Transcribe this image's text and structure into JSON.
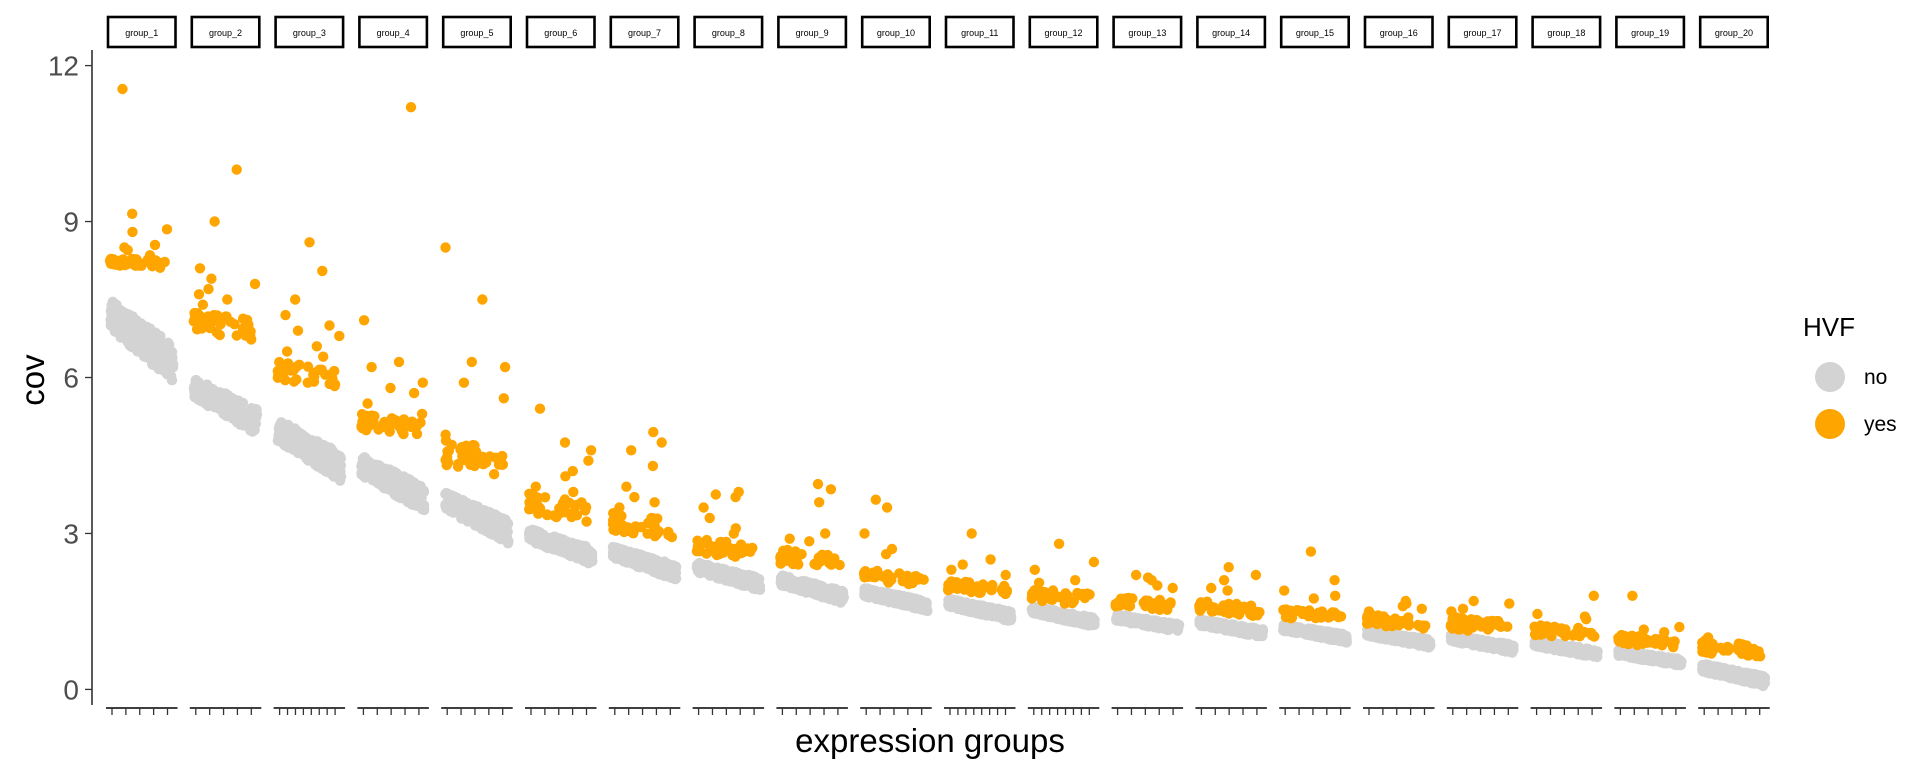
{
  "chart_data": {
    "type": "scatter",
    "facet_layout": "20 panels in one row, faceted by group",
    "xlabel": "expression groups",
    "ylabel": "cov",
    "ylim": [
      -0.3,
      12.3
    ],
    "y_ticks": [
      0,
      3,
      6,
      9,
      12
    ],
    "y_tick_labels": [
      "0",
      "3",
      "6",
      "9",
      "12"
    ],
    "x_tick_labels_shown": false,
    "grid": false,
    "legend": {
      "title": "HVF",
      "placement": "right",
      "entries": [
        {
          "label": "no",
          "color": "#d3d3d3"
        },
        {
          "label": "yes",
          "color": "#ffa500"
        }
      ]
    },
    "panels": [
      {
        "name": "group_1",
        "ticks": 5,
        "grey": [
          7.5,
          5.9
        ],
        "orange_band": [
          8.1,
          8.3
        ],
        "outliers": [
          11.55,
          9.15,
          8.85,
          8.8,
          8.55,
          8.5,
          8.45,
          8.35
        ]
      },
      {
        "name": "group_2",
        "ticks": 5,
        "grey": [
          6.0,
          4.9
        ],
        "orange_band": [
          6.7,
          7.3
        ],
        "outliers": [
          10.0,
          9.0,
          8.1,
          7.9,
          7.8,
          7.7,
          7.6,
          7.5,
          7.4,
          7.2
        ]
      },
      {
        "name": "group_3",
        "ticks": 8,
        "grey": [
          5.2,
          4.0
        ],
        "orange_band": [
          5.8,
          6.3
        ],
        "outliers": [
          8.6,
          8.05,
          7.5,
          7.2,
          7.0,
          6.9,
          6.8,
          6.6,
          6.5,
          6.4
        ]
      },
      {
        "name": "group_4",
        "ticks": 5,
        "grey": [
          4.5,
          3.4
        ],
        "orange_band": [
          4.85,
          5.3
        ],
        "outliers": [
          11.2,
          7.1,
          6.3,
          6.2,
          5.9,
          5.8,
          5.7,
          5.5,
          5.3
        ]
      },
      {
        "name": "group_5",
        "ticks": 5,
        "grey": [
          3.8,
          2.8
        ],
        "orange_band": [
          4.1,
          4.8
        ],
        "outliers": [
          8.5,
          7.5,
          6.3,
          6.2,
          5.9,
          5.6,
          4.9,
          4.7
        ]
      },
      {
        "name": "group_6",
        "ticks": 5,
        "grey": [
          3.1,
          2.4
        ],
        "orange_band": [
          3.2,
          3.8
        ],
        "outliers": [
          5.4,
          4.75,
          4.6,
          4.4,
          4.2,
          4.1,
          3.9,
          3.8
        ]
      },
      {
        "name": "group_7",
        "ticks": 5,
        "grey": [
          2.75,
          2.1
        ],
        "orange_band": [
          2.9,
          3.4
        ],
        "outliers": [
          4.95,
          4.75,
          4.6,
          4.3,
          3.9,
          3.7,
          3.6,
          3.5
        ]
      },
      {
        "name": "group_8",
        "ticks": 5,
        "grey": [
          2.45,
          1.9
        ],
        "orange_band": [
          2.5,
          2.9
        ],
        "outliers": [
          3.8,
          3.75,
          3.7,
          3.5,
          3.3,
          3.1,
          3.0
        ]
      },
      {
        "name": "group_9",
        "ticks": 5,
        "grey": [
          2.2,
          1.65
        ],
        "orange_band": [
          2.3,
          2.7
        ],
        "outliers": [
          3.95,
          3.85,
          3.6,
          3.0,
          2.9,
          2.85
        ]
      },
      {
        "name": "group_10",
        "ticks": 5,
        "grey": [
          1.95,
          1.5
        ],
        "orange_band": [
          2.0,
          2.3
        ],
        "outliers": [
          3.65,
          3.5,
          3.0,
          2.7,
          2.6
        ]
      },
      {
        "name": "group_11",
        "ticks": 8,
        "grey": [
          1.75,
          1.3
        ],
        "orange_band": [
          1.8,
          2.1
        ],
        "outliers": [
          3.0,
          2.5,
          2.4,
          2.3,
          2.2
        ]
      },
      {
        "name": "group_12",
        "ticks": 8,
        "grey": [
          1.6,
          1.2
        ],
        "orange_band": [
          1.6,
          1.95
        ],
        "outliers": [
          2.8,
          2.45,
          2.3,
          2.1,
          2.05
        ]
      },
      {
        "name": "group_13",
        "ticks": 5,
        "grey": [
          1.45,
          1.1
        ],
        "orange_band": [
          1.5,
          1.8
        ],
        "outliers": [
          2.2,
          2.15,
          2.1,
          2.0,
          1.95
        ]
      },
      {
        "name": "group_14",
        "ticks": 5,
        "grey": [
          1.35,
          1.0
        ],
        "orange_band": [
          1.4,
          1.7
        ],
        "outliers": [
          2.35,
          2.2,
          2.1,
          1.95,
          1.9
        ]
      },
      {
        "name": "group_15",
        "ticks": 5,
        "grey": [
          1.25,
          0.9
        ],
        "orange_band": [
          1.3,
          1.55
        ],
        "outliers": [
          2.65,
          2.1,
          1.9,
          1.8,
          1.75
        ]
      },
      {
        "name": "group_16",
        "ticks": 5,
        "grey": [
          1.15,
          0.8
        ],
        "orange_band": [
          1.15,
          1.45
        ],
        "outliers": [
          1.7,
          1.65,
          1.6,
          1.55,
          1.5
        ]
      },
      {
        "name": "group_17",
        "ticks": 5,
        "grey": [
          1.05,
          0.7
        ],
        "orange_band": [
          1.05,
          1.4
        ],
        "outliers": [
          1.7,
          1.65,
          1.55,
          1.5
        ]
      },
      {
        "name": "group_18",
        "ticks": 5,
        "grey": [
          0.95,
          0.6
        ],
        "orange_band": [
          0.95,
          1.25
        ],
        "outliers": [
          1.8,
          1.45,
          1.4,
          1.35
        ]
      },
      {
        "name": "group_19",
        "ticks": 5,
        "grey": [
          0.75,
          0.45
        ],
        "orange_band": [
          0.8,
          1.05
        ],
        "outliers": [
          1.8,
          1.2,
          1.15,
          1.1
        ]
      },
      {
        "name": "group_20",
        "ticks": 5,
        "grey": [
          0.5,
          0.05
        ],
        "orange_band": [
          0.6,
          0.95
        ],
        "outliers": [
          1.0,
          0.95
        ]
      }
    ]
  },
  "colors": {
    "no": "#d3d3d3",
    "yes": "#ffa500",
    "axis": "#000000",
    "tick_text": "#4d4d4d"
  }
}
